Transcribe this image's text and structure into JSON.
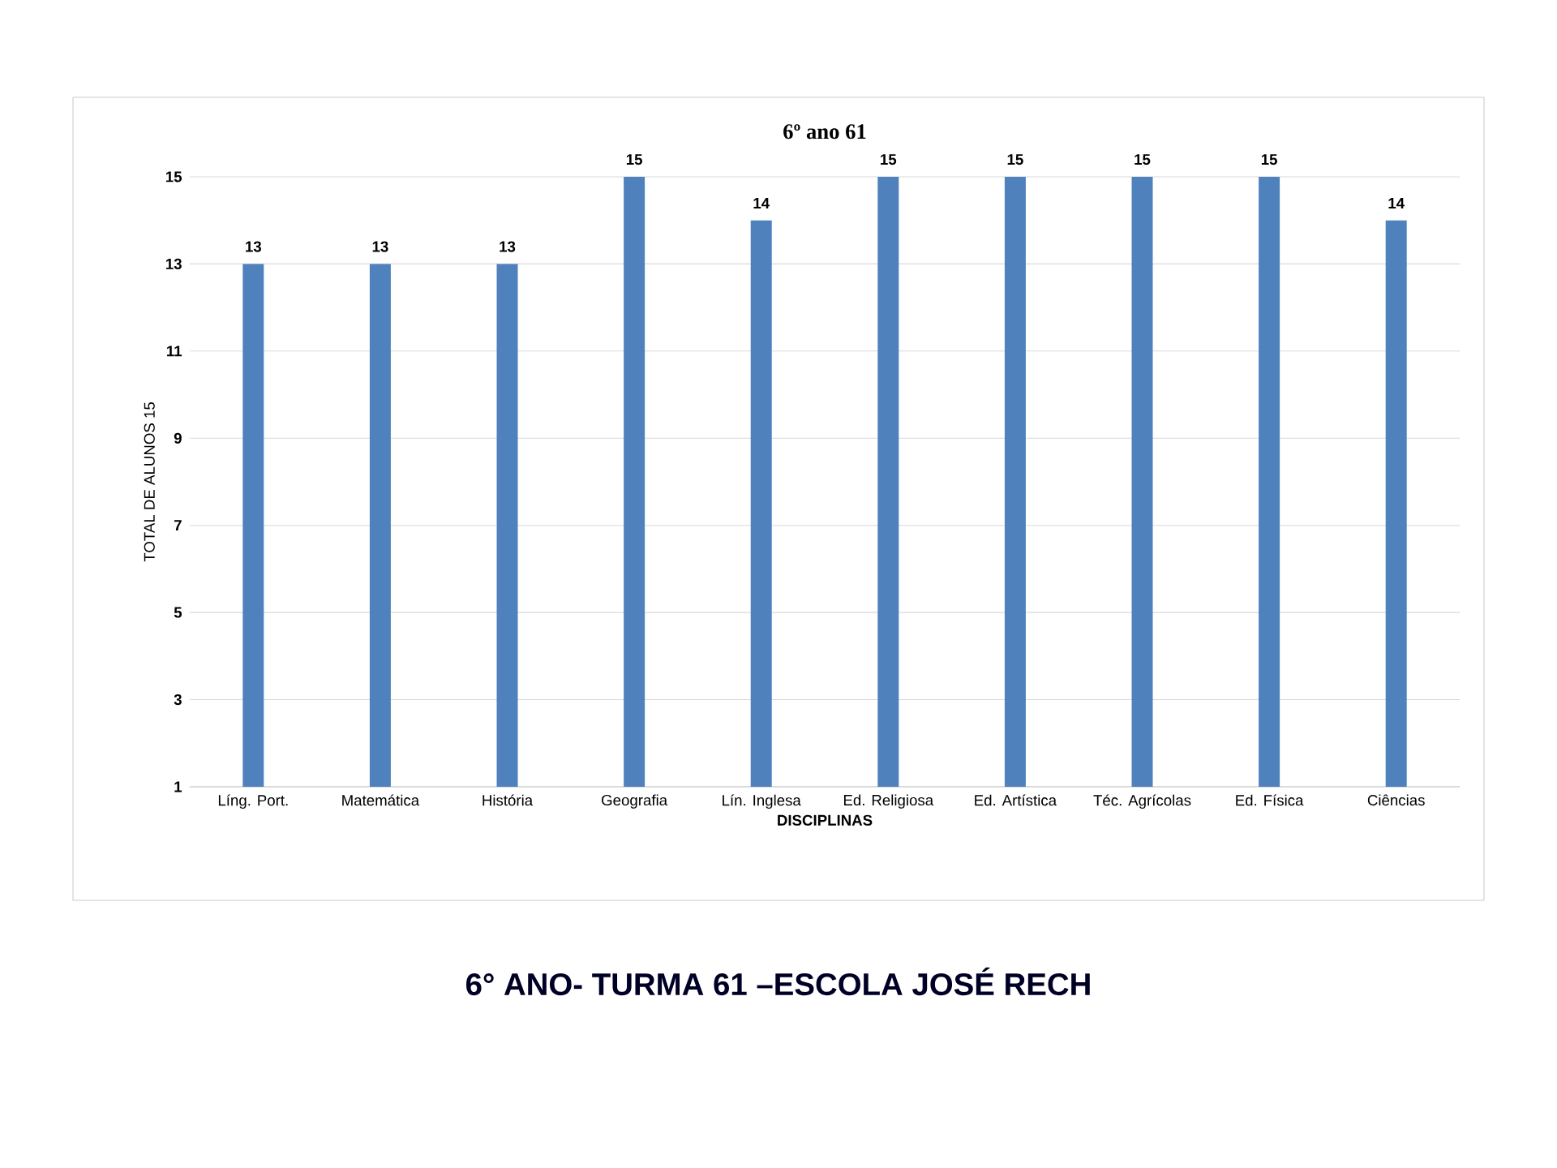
{
  "chart_data": {
    "type": "bar",
    "title": "6º ano 61",
    "xlabel": "DISCIPLINAS",
    "ylabel": "TOTAL DE ALUNOS 15",
    "categories": [
      "Líng. Port.",
      "Matemática",
      "História",
      "Geografia",
      "Lín. Inglesa",
      "Ed. Religiosa",
      "Ed. Artística",
      "Téc. Agrícolas",
      "Ed. Física",
      "Ciências"
    ],
    "values": [
      13,
      13,
      13,
      15,
      14,
      15,
      15,
      15,
      15,
      14
    ],
    "color": "#4f81bd",
    "ylim": [
      1,
      15
    ],
    "yticks": [
      1,
      3,
      5,
      7,
      9,
      11,
      13,
      15
    ],
    "grid": "y",
    "data_labels": true,
    "annotations": [
      "6° ANO- TURMA 61 –ESCOLA JOSÉ RECH"
    ]
  }
}
